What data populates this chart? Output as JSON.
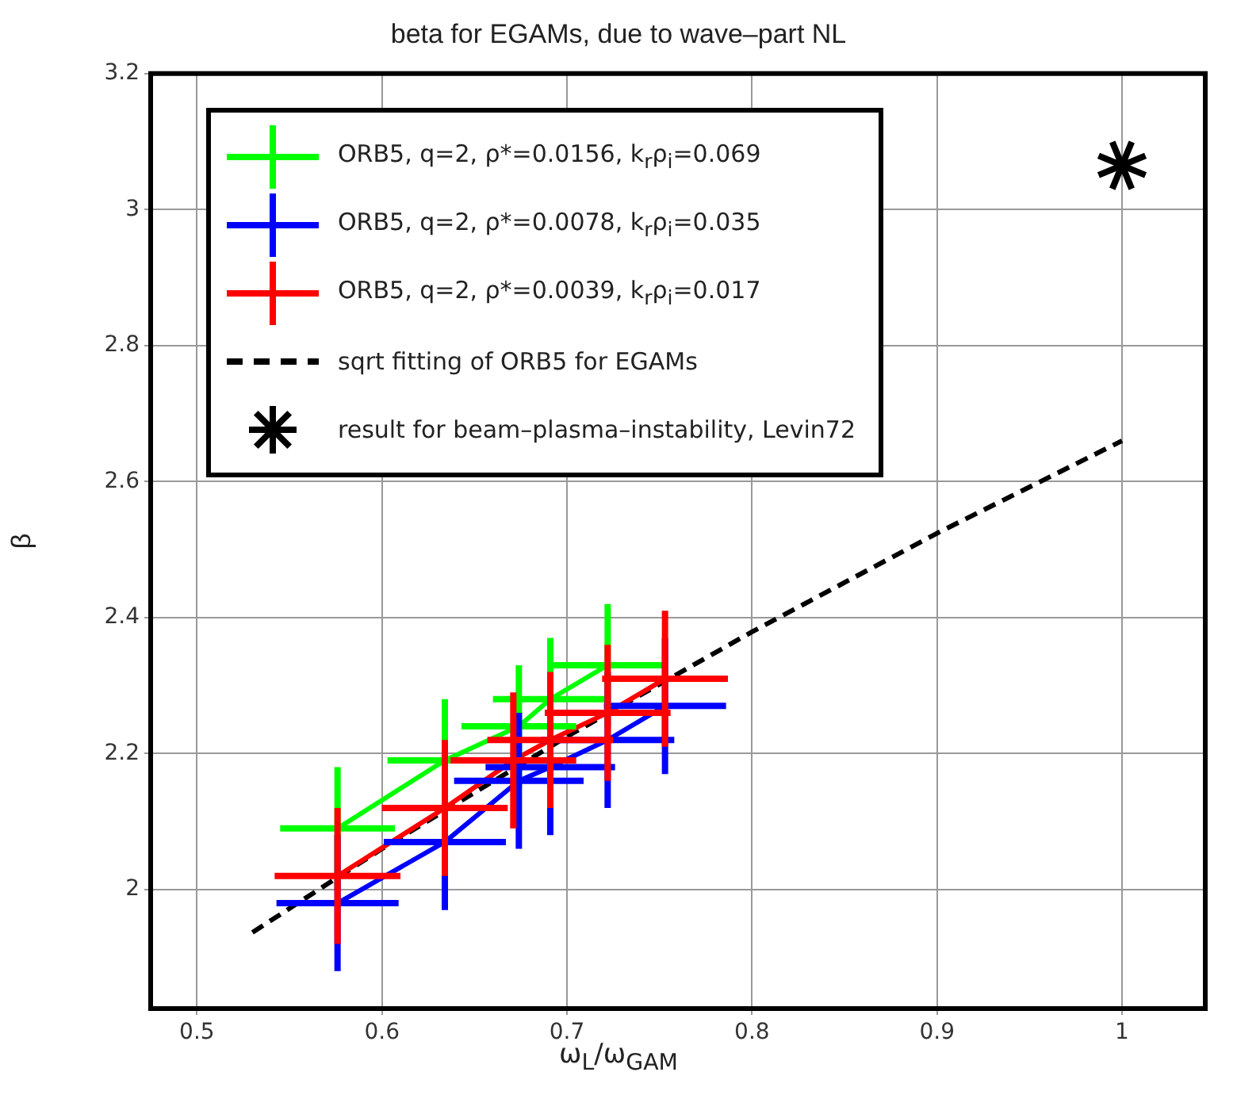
{
  "chart_data": {
    "type": "line",
    "title": "beta for EGAMs, due to wave–part NL",
    "xlabel": "ω$_{L}$/ω$_{GAM}$",
    "ylabel": "β",
    "xlim": [
      0.475,
      1.045
    ],
    "xticks": [
      0.5,
      0.6,
      0.7,
      0.8,
      0.9,
      1
    ],
    "ylim": [
      1.825,
      3.2
    ],
    "yticks": [
      2,
      2.2,
      2.4,
      2.6,
      2.8,
      3,
      3.2
    ],
    "grid": true,
    "legend": "top left",
    "marker": "none",
    "series": [
      {
        "name": "ORB5, q=2, ρ*=0.0156, k$_{r}$ρ$_{i}$=0.069",
        "color": "#00ff00",
        "x": [
          0.576,
          0.634,
          0.674,
          0.691,
          0.722
        ],
        "values": [
          2.09,
          2.19,
          2.24,
          2.28,
          2.33
        ],
        "errors": [
          0.09,
          0.09,
          0.09,
          0.09,
          0.09
        ],
        "xerrors": [
          0.031,
          0.031,
          0.031,
          0.031,
          0.031
        ]
      },
      {
        "name": "ORB5, q=2, ρ*=0.0078, k$_{r}$ρ$_{i}$=0.035",
        "color": "#0000ff",
        "x": [
          0.576,
          0.634,
          0.674,
          0.691,
          0.722,
          0.753
        ],
        "values": [
          1.98,
          2.07,
          2.16,
          2.18,
          2.22,
          2.27
        ],
        "errors": [
          0.1,
          0.1,
          0.1,
          0.1,
          0.1,
          0.1
        ],
        "xerrors": [
          0.033,
          0.033,
          0.035,
          0.035,
          0.036,
          0.033
        ]
      },
      {
        "name": "ORB5, q=2, ρ*=0.0039, k$_{r}$ρ$_{i}$=0.017",
        "color": "#ff0000",
        "x": [
          0.576,
          0.634,
          0.671,
          0.691,
          0.722,
          0.753
        ],
        "values": [
          2.02,
          2.12,
          2.19,
          2.22,
          2.26,
          2.31
        ],
        "errors": [
          0.1,
          0.1,
          0.1,
          0.1,
          0.1,
          0.1
        ],
        "xerrors": [
          0.034,
          0.034,
          0.034,
          0.034,
          0.034,
          0.034
        ]
      },
      {
        "name": "sqrt fitting of ORB5 for EGAMs",
        "color": "#000000",
        "line_style": "dashed",
        "x": [
          0.53,
          0.6,
          0.7,
          0.8,
          0.9,
          1.0
        ],
        "values": [
          1.937,
          2.06,
          2.225,
          2.379,
          2.524,
          2.66
        ]
      },
      {
        "name": "result for beam–plasma–instability, Levin72",
        "type": "scatter",
        "marker": "cross",
        "color": "#000000",
        "x": [
          1.0
        ],
        "values": [
          3.065
        ]
      }
    ]
  }
}
